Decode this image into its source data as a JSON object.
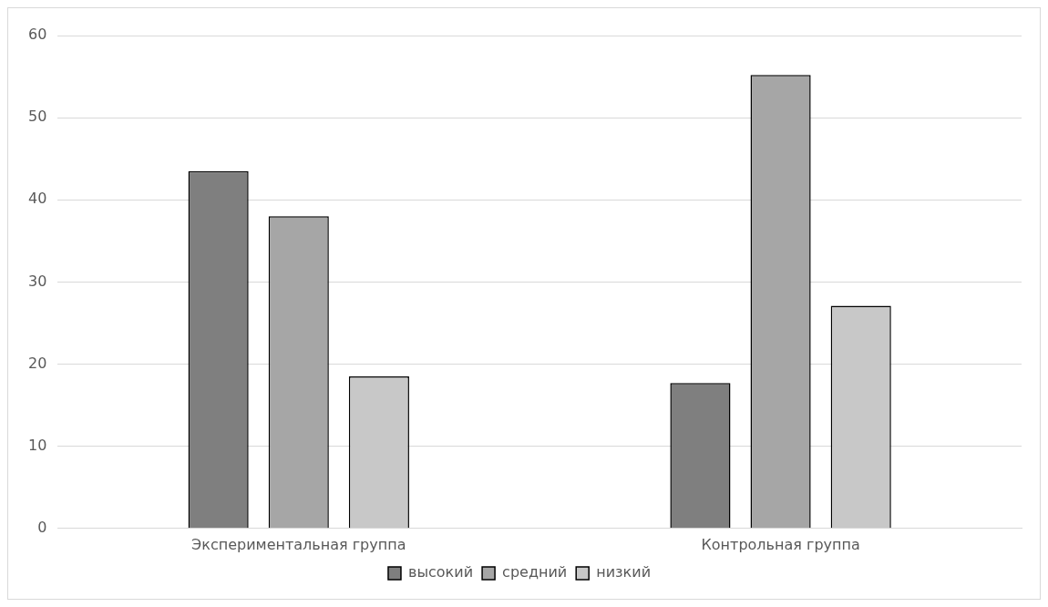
{
  "chart_data": {
    "type": "bar",
    "categories": [
      "Экспериментальная группа",
      "Контрольная группа"
    ],
    "series": [
      {
        "name": "высокий",
        "color": "#7f7f7f",
        "values": [
          43.5,
          17.7
        ]
      },
      {
        "name": "средний",
        "color": "#a6a6a6",
        "values": [
          38,
          55.2
        ]
      },
      {
        "name": "низкий",
        "color": "#c8c8c8",
        "values": [
          18.5,
          27.1
        ]
      }
    ],
    "ylim": [
      0,
      60
    ],
    "yticks": [
      0,
      10,
      20,
      30,
      40,
      50,
      60
    ],
    "grid": "y",
    "legend": "bottom"
  }
}
